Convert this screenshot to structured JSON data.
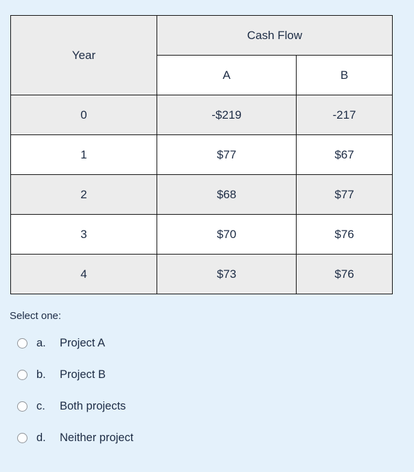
{
  "table": {
    "header": {
      "year_label": "Year",
      "cash_flow_label": "Cash Flow",
      "col_a_label": "A",
      "col_b_label": "B"
    },
    "rows": [
      {
        "year": "0",
        "a": "-$219",
        "b": "-217"
      },
      {
        "year": "1",
        "a": "$77",
        "b": "$67"
      },
      {
        "year": "2",
        "a": "$68",
        "b": "$77"
      },
      {
        "year": "3",
        "a": "$70",
        "b": "$76"
      },
      {
        "year": "4",
        "a": "$73",
        "b": "$76"
      }
    ]
  },
  "question": {
    "prompt": "Select one:",
    "options": [
      {
        "letter": "a.",
        "label": "Project A"
      },
      {
        "letter": "b.",
        "label": "Project B"
      },
      {
        "letter": "c.",
        "label": "Both projects"
      },
      {
        "letter": "d.",
        "label": "Neither project"
      }
    ]
  },
  "colors": {
    "page_background": "#e4f1fb",
    "table_stripe_gray": "#ececec",
    "table_row_white": "#ffffff",
    "table_border": "#141414",
    "text": "#1c2b44",
    "radio_border": "#8f9398"
  }
}
